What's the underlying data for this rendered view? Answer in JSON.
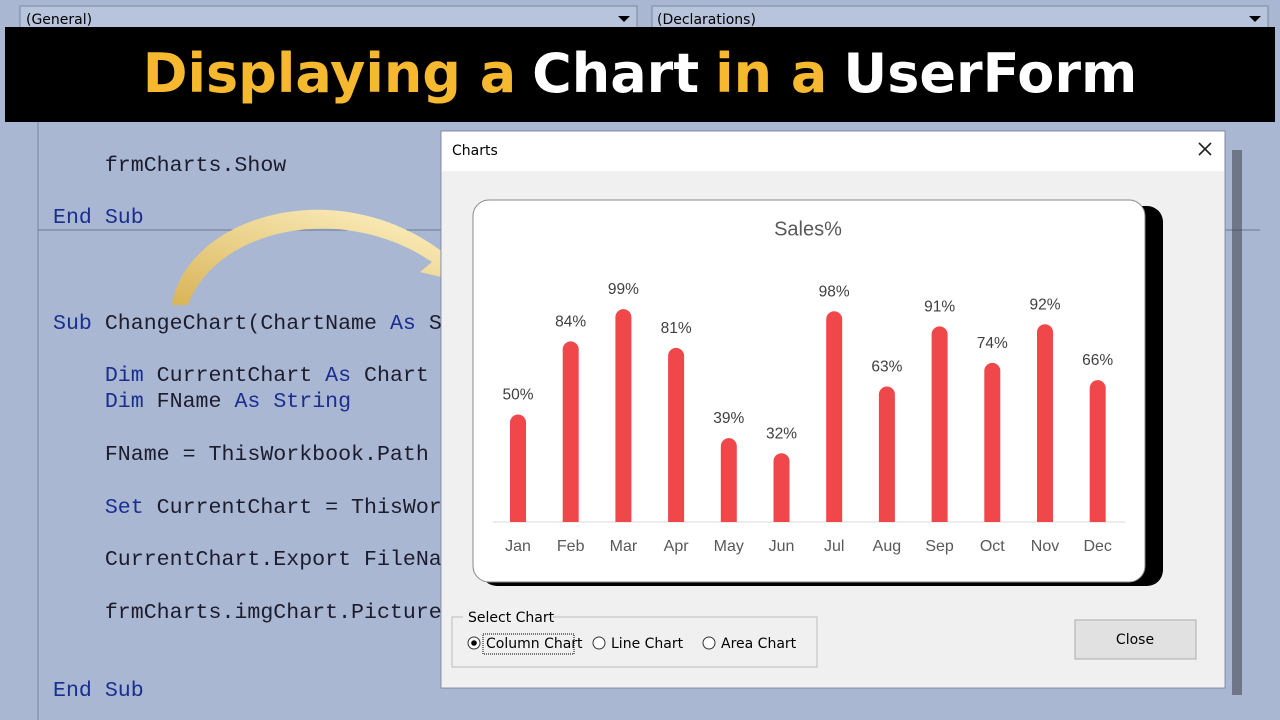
{
  "dropdowns": [
    "(General)",
    "(Declarations)"
  ],
  "banner": {
    "title_parts": [
      {
        "text": "Displaying a",
        "color": "#f5b82e"
      },
      {
        "text": "Chart",
        "color": "#ffffff"
      },
      {
        "text": "in a",
        "color": "#f5b82e"
      },
      {
        "text": "UserForm",
        "color": "#ffffff"
      }
    ]
  },
  "code": {
    "lines": [
      {
        "segments": [
          {
            "text": "    frmCharts.Show",
            "keyword": false
          }
        ]
      },
      {
        "segments": [
          {
            "text": "End Sub",
            "keyword": true
          }
        ]
      },
      {
        "segments": [
          {
            "text": "Sub",
            "keyword": true
          },
          {
            "text": " ChangeChart(ChartName ",
            "keyword": false
          },
          {
            "text": "As",
            "keyword": true
          },
          {
            "text": " S",
            "keyword": false
          }
        ]
      },
      {
        "segments": [
          {
            "text": "    Dim",
            "keyword": true
          },
          {
            "text": " CurrentChart ",
            "keyword": false
          },
          {
            "text": "As",
            "keyword": true
          },
          {
            "text": " Chart",
            "keyword": false
          }
        ]
      },
      {
        "segments": [
          {
            "text": "    Dim",
            "keyword": true
          },
          {
            "text": " FName ",
            "keyword": false
          },
          {
            "text": "As String",
            "keyword": true
          }
        ]
      },
      {
        "segments": [
          {
            "text": "    FName = ThisWorkbook.Path",
            "keyword": false
          }
        ]
      },
      {
        "segments": [
          {
            "text": "    Set",
            "keyword": true
          },
          {
            "text": " CurrentChart = ThisWor",
            "keyword": false
          }
        ]
      },
      {
        "segments": [
          {
            "text": "    CurrentChart.Export FileNa",
            "keyword": false
          }
        ]
      },
      {
        "segments": [
          {
            "text": "    frmCharts.imgChart.Picture",
            "keyword": false
          }
        ]
      },
      {
        "segments": [
          {
            "text": "End Sub",
            "keyword": true
          }
        ]
      }
    ]
  },
  "dialog": {
    "title": "Charts",
    "frame_label": "Select Chart",
    "options": [
      {
        "label": "Column Chart",
        "selected": true
      },
      {
        "label": "Line Chart",
        "selected": false
      },
      {
        "label": "Area Chart",
        "selected": false
      }
    ],
    "button": "Close"
  },
  "chart_data": {
    "type": "bar",
    "title": "Sales%",
    "categories": [
      "Jan",
      "Feb",
      "Mar",
      "Apr",
      "May",
      "Jun",
      "Jul",
      "Aug",
      "Sep",
      "Oct",
      "Nov",
      "Dec"
    ],
    "values": [
      50,
      84,
      99,
      81,
      39,
      32,
      98,
      63,
      91,
      74,
      92,
      66
    ],
    "value_labels": [
      "50%",
      "84%",
      "99%",
      "81%",
      "39%",
      "32%",
      "98%",
      "63%",
      "91%",
      "74%",
      "92%",
      "66%"
    ],
    "color": "#f0474b"
  }
}
